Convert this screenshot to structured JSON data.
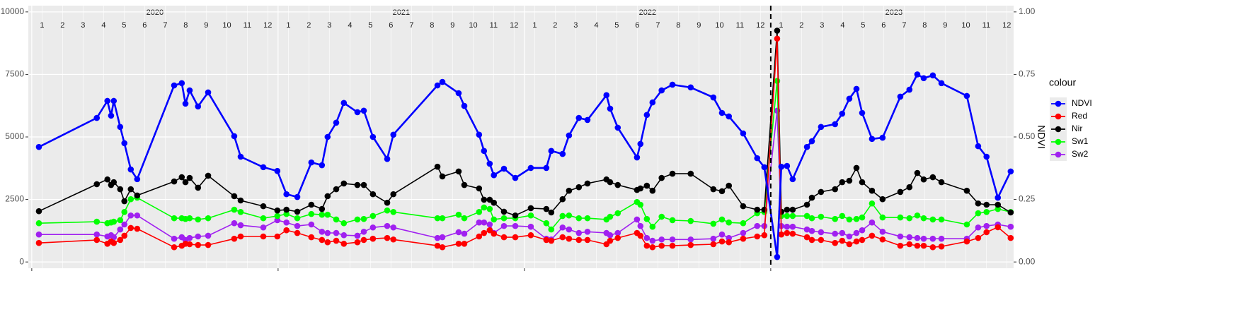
{
  "chart_data": {
    "type": "line",
    "x": [
      2020.029,
      2020.264,
      2020.307,
      2020.322,
      2020.333,
      2020.359,
      2020.376,
      2020.402,
      2020.428,
      2020.578,
      2020.609,
      2020.624,
      2020.641,
      2020.675,
      2020.716,
      2020.822,
      2020.848,
      2020.94,
      2020.997,
      2021.034,
      2021.078,
      2021.135,
      2021.178,
      2021.201,
      2021.236,
      2021.267,
      2021.322,
      2021.348,
      2021.385,
      2021.443,
      2021.468,
      2021.647,
      2021.667,
      2021.733,
      2021.756,
      2021.816,
      2021.836,
      2021.859,
      2021.876,
      2021.917,
      2021.963,
      2022.026,
      2022.089,
      2022.109,
      2022.155,
      2022.181,
      2022.221,
      2022.256,
      2022.333,
      2022.348,
      2022.379,
      2022.457,
      2022.471,
      2022.497,
      2022.52,
      2022.557,
      2022.601,
      2022.675,
      2022.767,
      2022.802,
      2022.83,
      2022.888,
      2022.945,
      2022.974,
      2023.026,
      2023.043,
      2023.066,
      2023.089,
      2023.147,
      2023.167,
      2023.204,
      2023.261,
      2023.29,
      2023.319,
      2023.348,
      2023.371,
      2023.411,
      2023.454,
      2023.526,
      2023.563,
      2023.595,
      2023.621,
      2023.658,
      2023.693,
      2023.796,
      2023.842,
      2023.876,
      2023.922,
      2023.974
    ],
    "series": [
      {
        "name": "NDVI",
        "color": "#0000ff",
        "axis": "y2",
        "values": [
          0.46,
          0.576,
          0.644,
          0.585,
          0.644,
          0.54,
          0.475,
          0.37,
          0.331,
          0.706,
          0.715,
          0.633,
          0.686,
          0.622,
          0.678,
          0.503,
          0.421,
          0.379,
          0.364,
          0.271,
          0.26,
          0.398,
          0.387,
          0.5,
          0.557,
          0.636,
          0.599,
          0.605,
          0.5,
          0.412,
          0.509,
          0.706,
          0.72,
          0.675,
          0.624,
          0.509,
          0.444,
          0.393,
          0.347,
          0.373,
          0.336,
          0.376,
          0.376,
          0.444,
          0.432,
          0.506,
          0.576,
          0.568,
          0.667,
          0.613,
          0.537,
          0.418,
          0.472,
          0.588,
          0.638,
          0.686,
          0.709,
          0.698,
          0.658,
          0.596,
          0.582,
          0.514,
          0.415,
          0.379,
          0.02,
          0.381,
          0.384,
          0.331,
          0.46,
          0.483,
          0.54,
          0.551,
          0.593,
          0.653,
          0.692,
          0.596,
          0.492,
          0.497,
          0.661,
          0.689,
          0.75,
          0.735,
          0.746,
          0.715,
          0.664,
          0.463,
          0.421,
          0.257,
          0.362
        ]
      },
      {
        "name": "Red",
        "color": "#ff0000",
        "values": [
          760,
          880,
          730,
          820,
          760,
          880,
          1050,
          1360,
          1330,
          590,
          650,
          730,
          710,
          680,
          680,
          930,
          1020,
          1020,
          1020,
          1270,
          1160,
          990,
          880,
          790,
          850,
          730,
          790,
          880,
          930,
          960,
          900,
          650,
          590,
          730,
          730,
          1020,
          1160,
          1270,
          1130,
          990,
          990,
          1070,
          880,
          850,
          990,
          930,
          880,
          880,
          710,
          850,
          960,
          1160,
          1050,
          650,
          590,
          650,
          650,
          680,
          710,
          820,
          790,
          930,
          1020,
          1070,
          8930,
          1100,
          1160,
          1130,
          990,
          880,
          880,
          760,
          850,
          710,
          820,
          880,
          1050,
          900,
          650,
          710,
          650,
          650,
          590,
          620,
          820,
          960,
          1190,
          1390,
          960
        ]
      },
      {
        "name": "Nir",
        "color": "#000000",
        "values": [
          2030,
          3110,
          3300,
          3080,
          3190,
          2910,
          2430,
          2910,
          2660,
          3220,
          3390,
          3190,
          3360,
          2970,
          3450,
          2630,
          2460,
          2230,
          2060,
          2090,
          2010,
          2290,
          2120,
          2630,
          2910,
          3140,
          3080,
          3080,
          2710,
          2370,
          2710,
          3810,
          3420,
          3620,
          3080,
          2940,
          2490,
          2490,
          2370,
          2010,
          1860,
          2150,
          2120,
          1980,
          2510,
          2850,
          2990,
          3140,
          3300,
          3190,
          3080,
          2880,
          2940,
          3050,
          2850,
          3360,
          3530,
          3530,
          2910,
          2830,
          3050,
          2230,
          2090,
          2090,
          9250,
          2010,
          2090,
          2090,
          2290,
          2570,
          2800,
          2910,
          3190,
          3250,
          3760,
          3190,
          2850,
          2510,
          2800,
          2990,
          3560,
          3300,
          3390,
          3190,
          2850,
          2340,
          2290,
          2290,
          1980
        ]
      },
      {
        "name": "Sw1",
        "color": "#00ff00",
        "values": [
          1550,
          1610,
          1550,
          1580,
          1610,
          1670,
          2000,
          2510,
          2570,
          1750,
          1750,
          1720,
          1750,
          1700,
          1750,
          2090,
          2000,
          1750,
          1840,
          1920,
          1750,
          1920,
          1890,
          1890,
          1700,
          1550,
          1700,
          1720,
          1840,
          2060,
          2000,
          1750,
          1750,
          1890,
          1750,
          2000,
          2180,
          2120,
          1700,
          1750,
          1750,
          1860,
          1550,
          1300,
          1840,
          1860,
          1750,
          1750,
          1700,
          1810,
          1950,
          2400,
          2290,
          1720,
          1410,
          1810,
          1670,
          1640,
          1530,
          1700,
          1580,
          1550,
          1950,
          2000,
          7240,
          1840,
          1840,
          1840,
          1840,
          1750,
          1810,
          1720,
          1840,
          1700,
          1720,
          1780,
          2340,
          1780,
          1780,
          1750,
          1860,
          1750,
          1700,
          1700,
          1500,
          1950,
          2000,
          2120,
          2000
        ]
      },
      {
        "name": "Sw2",
        "color": "#a020f0",
        "values": [
          1100,
          1100,
          1020,
          1070,
          990,
          1300,
          1500,
          1860,
          1860,
          930,
          990,
          880,
          960,
          1020,
          1050,
          1550,
          1470,
          1380,
          1670,
          1580,
          1440,
          1500,
          1210,
          1160,
          1160,
          1070,
          1050,
          1210,
          1380,
          1440,
          1380,
          960,
          990,
          1190,
          1130,
          1580,
          1580,
          1500,
          1160,
          1440,
          1440,
          1410,
          930,
          900,
          1380,
          1300,
          1160,
          1210,
          1160,
          1070,
          1160,
          1700,
          1440,
          960,
          850,
          900,
          900,
          900,
          930,
          1100,
          960,
          1160,
          1440,
          1440,
          6050,
          1440,
          1410,
          1410,
          1300,
          1240,
          1190,
          1130,
          1160,
          1020,
          1160,
          1270,
          1580,
          1210,
          1020,
          990,
          960,
          930,
          930,
          930,
          930,
          1380,
          1440,
          1500,
          1410
        ]
      }
    ],
    "xlim": [
      2019.986,
      2023.986
    ],
    "xticks": [
      2020,
      2021,
      2022,
      2023
    ],
    "month_ticks": [
      {
        "value": 2020.042,
        "label": "1"
      },
      {
        "value": 2020.125,
        "label": "2"
      },
      {
        "value": 2020.208,
        "label": "3"
      },
      {
        "value": 2020.292,
        "label": "4"
      },
      {
        "value": 2020.375,
        "label": "5"
      },
      {
        "value": 2020.458,
        "label": "6"
      },
      {
        "value": 2020.542,
        "label": "7"
      },
      {
        "value": 2020.625,
        "label": "8"
      },
      {
        "value": 2020.708,
        "label": "9"
      },
      {
        "value": 2020.792,
        "label": "10"
      },
      {
        "value": 2020.875,
        "label": "11"
      },
      {
        "value": 2020.958,
        "label": "12"
      },
      {
        "value": 2021.042,
        "label": "1"
      },
      {
        "value": 2021.125,
        "label": "2"
      },
      {
        "value": 2021.208,
        "label": "3"
      },
      {
        "value": 2021.292,
        "label": "4"
      },
      {
        "value": 2021.375,
        "label": "5"
      },
      {
        "value": 2021.458,
        "label": "6"
      },
      {
        "value": 2021.542,
        "label": "7"
      },
      {
        "value": 2021.625,
        "label": "8"
      },
      {
        "value": 2021.708,
        "label": "9"
      },
      {
        "value": 2021.792,
        "label": "10"
      },
      {
        "value": 2021.875,
        "label": "11"
      },
      {
        "value": 2021.958,
        "label": "12"
      },
      {
        "value": 2022.042,
        "label": "1"
      },
      {
        "value": 2022.125,
        "label": "2"
      },
      {
        "value": 2022.208,
        "label": "3"
      },
      {
        "value": 2022.292,
        "label": "4"
      },
      {
        "value": 2022.375,
        "label": "5"
      },
      {
        "value": 2022.458,
        "label": "6"
      },
      {
        "value": 2022.542,
        "label": "7"
      },
      {
        "value": 2022.625,
        "label": "8"
      },
      {
        "value": 2022.708,
        "label": "9"
      },
      {
        "value": 2022.792,
        "label": "10"
      },
      {
        "value": 2022.875,
        "label": "11"
      },
      {
        "value": 2022.958,
        "label": "12"
      },
      {
        "value": 2023.042,
        "label": "1"
      },
      {
        "value": 2023.125,
        "label": "2"
      },
      {
        "value": 2023.208,
        "label": "3"
      },
      {
        "value": 2023.292,
        "label": "4"
      },
      {
        "value": 2023.375,
        "label": "5"
      },
      {
        "value": 2023.458,
        "label": "6"
      },
      {
        "value": 2023.542,
        "label": "7"
      },
      {
        "value": 2023.625,
        "label": "8"
      },
      {
        "value": 2023.708,
        "label": "9"
      },
      {
        "value": 2023.792,
        "label": "10"
      },
      {
        "value": 2023.875,
        "label": "11"
      },
      {
        "value": 2023.958,
        "label": "12"
      }
    ],
    "year_labels": [
      {
        "value": 2020.5,
        "label": "2020"
      },
      {
        "value": 2021.5,
        "label": "2021"
      },
      {
        "value": 2022.5,
        "label": "2022"
      },
      {
        "value": 2023.5,
        "label": "2023"
      }
    ],
    "vline": 2023,
    "ylim": [
      -250,
      10250
    ],
    "yticks": [
      0,
      2500,
      5000,
      7500,
      10000
    ],
    "y2lim": [
      -0.025,
      1.025
    ],
    "y2ticks": [
      {
        "value": 0,
        "label": "0.00"
      },
      {
        "value": 0.25,
        "label": "0.25"
      },
      {
        "value": 0.5,
        "label": "0.50"
      },
      {
        "value": 0.75,
        "label": "0.75"
      },
      {
        "value": 1,
        "label": "1.00"
      }
    ],
    "y2label": "NDVI",
    "legend_title": "colour",
    "legend": "right",
    "grid": true
  }
}
